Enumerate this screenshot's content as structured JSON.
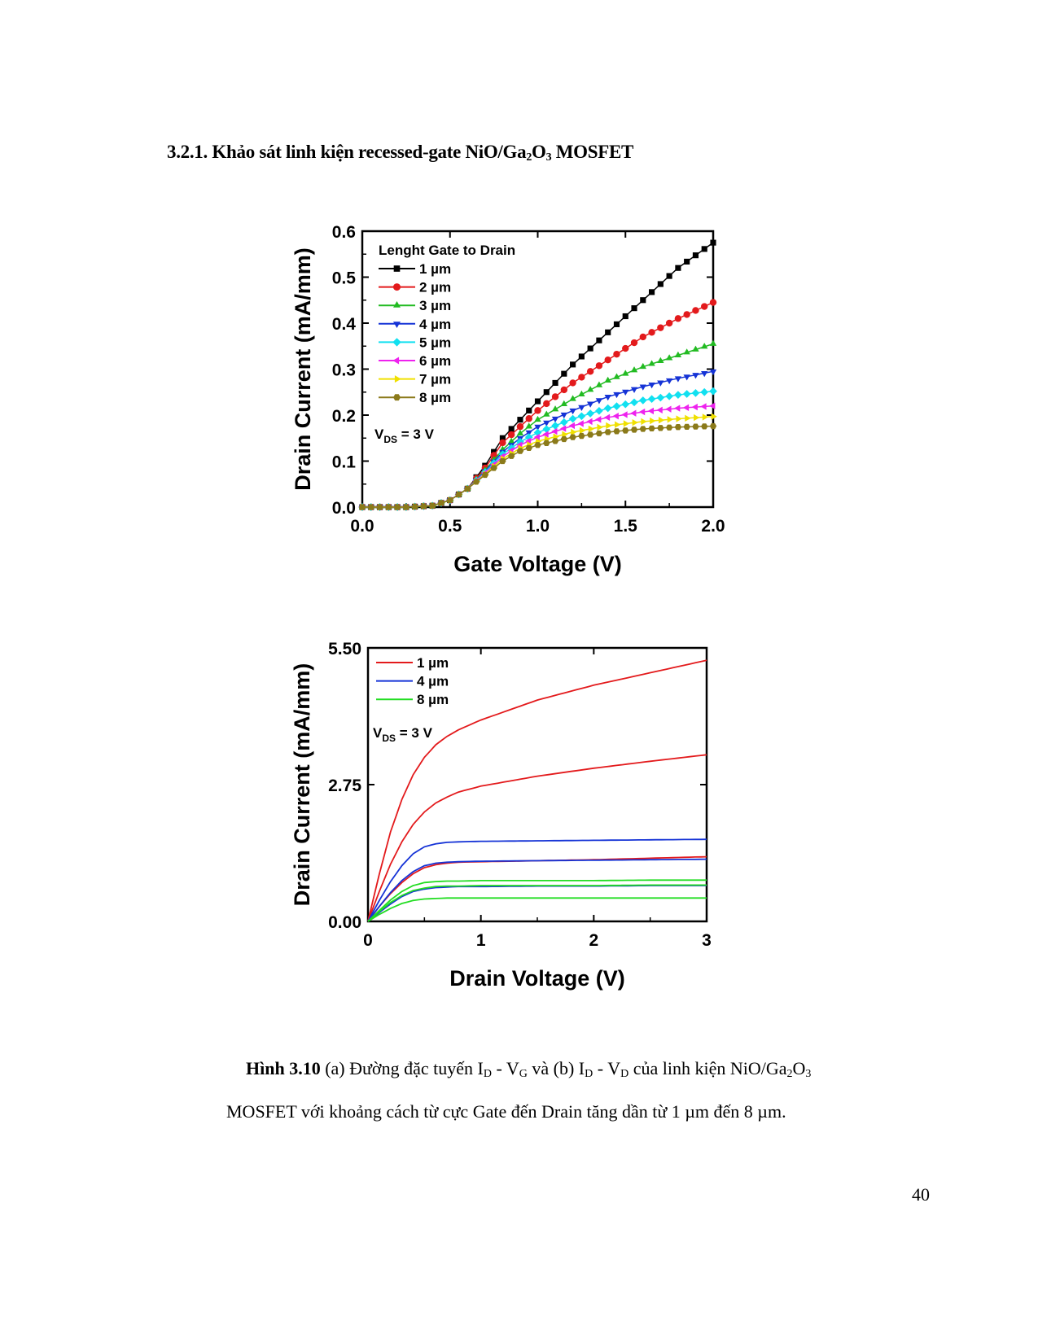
{
  "heading": {
    "number": "3.2.1.",
    "text_before": "Khảo sát linh kiện recessed-gate NiO/Ga",
    "sub1": "2",
    "mid": "O",
    "sub2": "3",
    "text_after": "MOSFET"
  },
  "chart_data": [
    {
      "type": "line",
      "title": "",
      "xlabel": "Gate Voltage (V)",
      "ylabel": "Drain Current (mA/mm)",
      "xlim": [
        0,
        2.0
      ],
      "ylim": [
        0,
        0.6
      ],
      "xticks": [
        0.0,
        0.5,
        1.0,
        1.5,
        2.0
      ],
      "xtick_labels": [
        "0.0",
        "0.5",
        "1.0",
        "1.5",
        "2.0"
      ],
      "yticks": [
        0.0,
        0.1,
        0.2,
        0.3,
        0.4,
        0.5,
        0.6
      ],
      "ytick_labels": [
        "0.0",
        "0.1",
        "0.2",
        "0.3",
        "0.4",
        "0.5",
        "0.6"
      ],
      "legend_title": "Lenght Gate to Drain",
      "legend_position": "top-left",
      "annotation": {
        "main": "V",
        "sub": "DS",
        "rest": " = 3 V"
      },
      "x": [
        0.0,
        0.25,
        0.4,
        0.5,
        0.6,
        0.7,
        0.8,
        0.9,
        1.0,
        1.2,
        1.4,
        1.6,
        1.8,
        2.0
      ],
      "series": [
        {
          "name": "1 µm",
          "color": "#000000",
          "marker": "square",
          "values": [
            0.0,
            0.0,
            0.003,
            0.015,
            0.04,
            0.09,
            0.15,
            0.19,
            0.23,
            0.31,
            0.38,
            0.45,
            0.52,
            0.575
          ]
        },
        {
          "name": "2 µm",
          "color": "#e31a1c",
          "marker": "circle",
          "values": [
            0.0,
            0.0,
            0.003,
            0.015,
            0.04,
            0.085,
            0.14,
            0.175,
            0.21,
            0.27,
            0.32,
            0.37,
            0.41,
            0.445
          ]
        },
        {
          "name": "3 µm",
          "color": "#22bb22",
          "marker": "triangle-up",
          "values": [
            0.0,
            0.0,
            0.003,
            0.015,
            0.04,
            0.08,
            0.125,
            0.16,
            0.19,
            0.235,
            0.275,
            0.305,
            0.33,
            0.355
          ]
        },
        {
          "name": "4 µm",
          "color": "#1533d6",
          "marker": "triangle-down",
          "values": [
            0.0,
            0.0,
            0.003,
            0.015,
            0.04,
            0.078,
            0.12,
            0.15,
            0.175,
            0.21,
            0.24,
            0.262,
            0.28,
            0.295
          ]
        },
        {
          "name": "5 µm",
          "color": "#11e0f0",
          "marker": "diamond",
          "values": [
            0.0,
            0.0,
            0.003,
            0.015,
            0.04,
            0.076,
            0.115,
            0.142,
            0.162,
            0.192,
            0.215,
            0.232,
            0.244,
            0.252
          ]
        },
        {
          "name": "6 µm",
          "color": "#ee22ee",
          "marker": "triangle-left",
          "values": [
            0.0,
            0.0,
            0.003,
            0.015,
            0.04,
            0.074,
            0.11,
            0.135,
            0.152,
            0.177,
            0.195,
            0.207,
            0.215,
            0.22
          ]
        },
        {
          "name": "7 µm",
          "color": "#f0e000",
          "marker": "triangle-right",
          "values": [
            0.0,
            0.0,
            0.003,
            0.015,
            0.04,
            0.072,
            0.105,
            0.128,
            0.143,
            0.163,
            0.177,
            0.186,
            0.192,
            0.197
          ]
        },
        {
          "name": "8 µm",
          "color": "#8b7a1a",
          "marker": "hexagon",
          "values": [
            0.0,
            0.0,
            0.003,
            0.015,
            0.04,
            0.07,
            0.1,
            0.122,
            0.135,
            0.152,
            0.163,
            0.17,
            0.174,
            0.176
          ]
        }
      ]
    },
    {
      "type": "line",
      "title": "",
      "xlabel": "Drain Voltage (V)",
      "ylabel": "Drain Current (mA/mm)",
      "xlim": [
        0,
        3
      ],
      "ylim": [
        0,
        5.5
      ],
      "xticks": [
        0,
        1,
        2,
        3
      ],
      "xtick_labels": [
        "0",
        "1",
        "2",
        "3"
      ],
      "yticks": [
        0.0,
        2.75,
        5.5
      ],
      "ytick_labels": [
        "0.00",
        "2.75",
        "5.50"
      ],
      "legend_position": "top-left",
      "annotation": {
        "main": "V",
        "sub": "DS",
        "rest": " = 3 V"
      },
      "x": [
        0,
        0.1,
        0.2,
        0.3,
        0.4,
        0.5,
        0.6,
        0.7,
        0.8,
        1.0,
        1.5,
        2.0,
        2.5,
        3.0
      ],
      "legend": [
        {
          "name": "1 µm",
          "color": "#e31a1c"
        },
        {
          "name": "4 µm",
          "color": "#1533d6"
        },
        {
          "name": "8 µm",
          "color": "#22dd22"
        }
      ],
      "series": [
        {
          "name": "1 µm (upper)",
          "color": "#e31a1c",
          "values": [
            0,
            0.95,
            1.8,
            2.45,
            2.95,
            3.3,
            3.55,
            3.72,
            3.85,
            4.05,
            4.45,
            4.75,
            5.0,
            5.25
          ]
        },
        {
          "name": "1 µm (middle)",
          "color": "#e31a1c",
          "values": [
            0,
            0.6,
            1.15,
            1.6,
            1.95,
            2.2,
            2.38,
            2.5,
            2.6,
            2.72,
            2.92,
            3.08,
            3.22,
            3.35
          ]
        },
        {
          "name": "1 µm (lower)",
          "color": "#e31a1c",
          "values": [
            0,
            0.3,
            0.56,
            0.78,
            0.96,
            1.08,
            1.14,
            1.17,
            1.19,
            1.2,
            1.22,
            1.24,
            1.27,
            1.3
          ]
        },
        {
          "name": "4 µm (upper)",
          "color": "#1533d6",
          "values": [
            0,
            0.42,
            0.8,
            1.12,
            1.36,
            1.5,
            1.56,
            1.59,
            1.6,
            1.61,
            1.62,
            1.63,
            1.64,
            1.65
          ]
        },
        {
          "name": "4 µm (middle)",
          "color": "#1533d6",
          "values": [
            0,
            0.3,
            0.58,
            0.82,
            1.0,
            1.12,
            1.17,
            1.19,
            1.2,
            1.21,
            1.22,
            1.23,
            1.24,
            1.25
          ]
        },
        {
          "name": "4 µm (lower)",
          "color": "#1533d6",
          "values": [
            0,
            0.18,
            0.35,
            0.5,
            0.6,
            0.65,
            0.68,
            0.69,
            0.7,
            0.7,
            0.71,
            0.71,
            0.72,
            0.72
          ]
        },
        {
          "name": "8 µm (upper)",
          "color": "#22dd22",
          "values": [
            0,
            0.22,
            0.43,
            0.6,
            0.72,
            0.78,
            0.8,
            0.81,
            0.81,
            0.82,
            0.82,
            0.82,
            0.83,
            0.83
          ]
        },
        {
          "name": "8 µm (middle)",
          "color": "#22dd22",
          "values": [
            0,
            0.2,
            0.38,
            0.52,
            0.62,
            0.67,
            0.7,
            0.71,
            0.71,
            0.72,
            0.72,
            0.72,
            0.73,
            0.73
          ]
        },
        {
          "name": "8 µm (lower)",
          "color": "#22dd22",
          "values": [
            0,
            0.14,
            0.26,
            0.36,
            0.42,
            0.45,
            0.46,
            0.47,
            0.47,
            0.47,
            0.47,
            0.47,
            0.47,
            0.47
          ]
        }
      ]
    }
  ],
  "caption": {
    "label": "Hình 3.10",
    "line1_text": " (a) Đường đặc tuyến I",
    "sub_d1": "D",
    "dash1": " - V",
    "sub_g": "G",
    "mid": " và (b) I",
    "sub_d2": "D",
    "dash2": " - V",
    "sub_d3": "D",
    "tail": " của linh kiện NiO/Ga",
    "sub_2": "2",
    "o": "O",
    "sub_3": "3",
    "line2": "MOSFET với khoảng cách từ cực Gate đến Drain tăng dần từ 1 µm đến 8 µm."
  },
  "page_number": "40"
}
